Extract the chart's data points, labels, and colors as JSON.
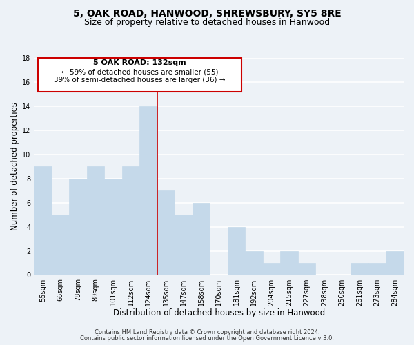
{
  "title": "5, OAK ROAD, HANWOOD, SHREWSBURY, SY5 8RE",
  "subtitle": "Size of property relative to detached houses in Hanwood",
  "xlabel": "Distribution of detached houses by size in Hanwood",
  "ylabel": "Number of detached properties",
  "bar_labels": [
    "55sqm",
    "66sqm",
    "78sqm",
    "89sqm",
    "101sqm",
    "112sqm",
    "124sqm",
    "135sqm",
    "147sqm",
    "158sqm",
    "170sqm",
    "181sqm",
    "192sqm",
    "204sqm",
    "215sqm",
    "227sqm",
    "238sqm",
    "250sqm",
    "261sqm",
    "273sqm",
    "284sqm"
  ],
  "bar_values": [
    9,
    5,
    8,
    9,
    8,
    9,
    14,
    7,
    5,
    6,
    0,
    4,
    2,
    1,
    2,
    1,
    0,
    0,
    1,
    1,
    2
  ],
  "bar_color": "#c5d9ea",
  "bar_edge_color": "#c5d9ea",
  "highlight_line_color": "#cc0000",
  "annotation_title": "5 OAK ROAD: 132sqm",
  "annotation_line1": "← 59% of detached houses are smaller (55)",
  "annotation_line2": "39% of semi-detached houses are larger (36) →",
  "annotation_box_color": "#ffffff",
  "annotation_box_edge_color": "#cc0000",
  "ylim": [
    0,
    18
  ],
  "yticks": [
    0,
    2,
    4,
    6,
    8,
    10,
    12,
    14,
    16,
    18
  ],
  "footer_line1": "Contains HM Land Registry data © Crown copyright and database right 2024.",
  "footer_line2": "Contains public sector information licensed under the Open Government Licence v 3.0.",
  "bg_color": "#edf2f7",
  "grid_color": "#ffffff",
  "title_fontsize": 10,
  "subtitle_fontsize": 9,
  "axis_label_fontsize": 8.5,
  "tick_fontsize": 7,
  "annotation_title_fontsize": 8,
  "annotation_text_fontsize": 7.5,
  "footer_fontsize": 6
}
